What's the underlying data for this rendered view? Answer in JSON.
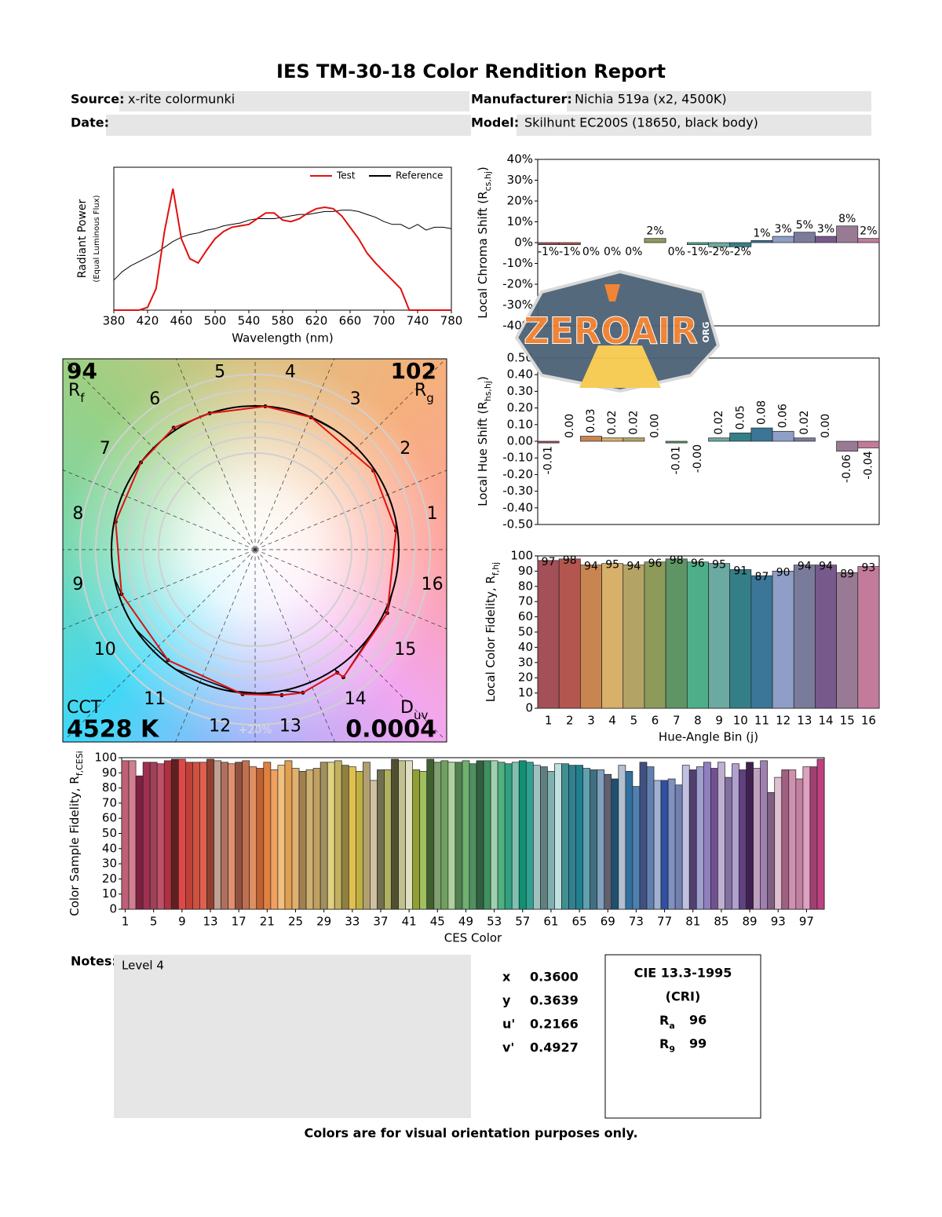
{
  "header": {
    "title": "IES TM-30-18 Color Rendition Report",
    "fields": [
      {
        "label": "Source:",
        "value": "x-rite colormunki"
      },
      {
        "label": "Manufacturer:",
        "value": "Nichia 519a (x2, 4500K)"
      },
      {
        "label": "Date:"
      },
      {
        "label": "Model:",
        "value": "Skilhunt EC200S (18650, black body)"
      }
    ]
  },
  "chart_data": [
    {
      "type": "line",
      "xlabel": "Wavelength (nm)",
      "ylabel": [
        "Radiant Power",
        "(Equal Luminous Flux)"
      ],
      "x": [
        380,
        390,
        400,
        410,
        420,
        430,
        440,
        450,
        460,
        470,
        480,
        490,
        500,
        510,
        520,
        530,
        540,
        550,
        560,
        570,
        580,
        590,
        600,
        610,
        620,
        630,
        640,
        650,
        660,
        670,
        680,
        690,
        700,
        710,
        720,
        730,
        740,
        750,
        760,
        770,
        780
      ],
      "xlim": [
        380,
        780
      ],
      "xticks": [
        380,
        420,
        460,
        500,
        540,
        580,
        620,
        660,
        700,
        740,
        780
      ],
      "ylim": [
        0,
        1
      ],
      "legend": "upper right",
      "series": [
        {
          "name": "Test",
          "color": "#e01010",
          "values": [
            0,
            0,
            0,
            0,
            0.02,
            0.15,
            0.55,
            0.85,
            0.5,
            0.36,
            0.33,
            0.42,
            0.5,
            0.55,
            0.58,
            0.59,
            0.6,
            0.64,
            0.68,
            0.68,
            0.63,
            0.62,
            0.64,
            0.68,
            0.71,
            0.72,
            0.71,
            0.66,
            0.58,
            0.5,
            0.4,
            0.33,
            0.27,
            0.21,
            0.15,
            0,
            0,
            0,
            0,
            0,
            0
          ]
        },
        {
          "name": "Reference",
          "color": "#000000",
          "values": [
            0.21,
            0.27,
            0.31,
            0.34,
            0.37,
            0.4,
            0.44,
            0.48,
            0.51,
            0.53,
            0.54,
            0.56,
            0.57,
            0.59,
            0.6,
            0.61,
            0.63,
            0.64,
            0.64,
            0.64,
            0.65,
            0.66,
            0.67,
            0.67,
            0.68,
            0.69,
            0.69,
            0.7,
            0.7,
            0.69,
            0.67,
            0.65,
            0.62,
            0.6,
            0.6,
            0.57,
            0.6,
            0.56,
            0.58,
            0.58,
            0.57
          ]
        }
      ]
    },
    {
      "type": "bar",
      "ylabel": {
        "text": "Local Chroma Shift (R",
        "sub": "cs,hj",
        "tail": ")"
      },
      "values": [
        -1,
        -1,
        0,
        0,
        0,
        2,
        0,
        -1,
        -2,
        -2,
        1,
        3,
        5,
        3,
        8,
        2
      ],
      "value_labels": [
        "-1%",
        "-1%",
        "0%",
        "0%",
        "0%",
        "2%",
        "0%",
        "-1%",
        "-2%",
        "-2%",
        "1%",
        "3%",
        "5%",
        "3%",
        "8%",
        "2%"
      ],
      "colors": [
        "#a35058",
        "#b3564f",
        "#c98550",
        "#d7b06a",
        "#b3a466",
        "#8c9b5a",
        "#5f9464",
        "#4fae8a",
        "#6aaaa0",
        "#347f87",
        "#3b7598",
        "#8f9ec6",
        "#7a7b9b",
        "#77598c",
        "#997a95",
        "#c27b9b"
      ],
      "ylim": [
        -40,
        40
      ],
      "yticks": [
        {
          "value": -40,
          "label": "-40%"
        },
        {
          "value": -30,
          "label": "-30%"
        },
        {
          "value": -20,
          "label": "-20%"
        },
        {
          "value": -10,
          "label": "-10%"
        },
        {
          "value": 0,
          "label": "0%"
        },
        {
          "value": 10,
          "label": "10%"
        },
        {
          "value": 20,
          "label": "20%"
        },
        {
          "value": 30,
          "label": "30%"
        },
        {
          "value": 40,
          "label": "40%"
        }
      ]
    },
    {
      "type": "bar",
      "ylabel": {
        "text": "Local Hue Shift (R",
        "sub": "hs,hj",
        "tail": ")"
      },
      "values": [
        -0.01,
        0,
        0.03,
        0.02,
        0.02,
        0,
        -0.01,
        0,
        0.02,
        0.05,
        0.08,
        0.06,
        0.02,
        0,
        -0.06,
        -0.04
      ],
      "value_labels": [
        "-0.01",
        "0.00",
        "0.03",
        "0.02",
        "0.02",
        "0.00",
        "-0.01",
        "-0.00",
        "0.02",
        "0.05",
        "0.08",
        "0.06",
        "0.02",
        "0.00",
        "-0.06",
        "-0.04"
      ],
      "label_rotation": -90,
      "colors": [
        "#a35058",
        "#b3564f",
        "#c98550",
        "#d7b06a",
        "#b3a466",
        "#8c9b5a",
        "#5f9464",
        "#4fae8a",
        "#6aaaa0",
        "#347f87",
        "#3b7598",
        "#8f9ec6",
        "#7a7b9b",
        "#77598c",
        "#997a95",
        "#c27b9b"
      ],
      "ylim": [
        -0.5,
        0.5
      ],
      "yticks": [
        {
          "value": -0.5,
          "label": "-0.50"
        },
        {
          "value": -0.4,
          "label": "-0.40"
        },
        {
          "value": -0.3,
          "label": "-0.30"
        },
        {
          "value": -0.2,
          "label": "-0.20"
        },
        {
          "value": -0.1,
          "label": "-0.10"
        },
        {
          "value": 0,
          "label": "0.00"
        },
        {
          "value": 0.1,
          "label": "0.10"
        },
        {
          "value": 0.2,
          "label": "0.20"
        },
        {
          "value": 0.3,
          "label": "0.30"
        },
        {
          "value": 0.4,
          "label": "0.40"
        },
        {
          "value": 0.5,
          "label": "0.50"
        }
      ]
    },
    {
      "type": "bar",
      "xlabel": "Hue-Angle Bin (j)",
      "ylabel": {
        "text": "Local Color Fidelity, R",
        "sub": "f,hj"
      },
      "categories": [
        1,
        2,
        3,
        4,
        5,
        6,
        7,
        8,
        9,
        10,
        11,
        12,
        13,
        14,
        15,
        16
      ],
      "values": [
        97,
        98,
        94,
        95,
        94,
        96,
        98,
        96,
        95,
        91,
        87,
        90,
        94,
        94,
        89,
        93
      ],
      "data_labels": true,
      "colors": [
        "#a35058",
        "#b3564f",
        "#c98550",
        "#d7b06a",
        "#b3a466",
        "#8c9b5a",
        "#5f9464",
        "#4fae8a",
        "#6aaaa0",
        "#347f87",
        "#3b7598",
        "#8f9ec6",
        "#7a7b9b",
        "#77598c",
        "#997a95",
        "#c27b9b"
      ],
      "ylim": [
        0,
        100
      ],
      "yticks": [
        0,
        10,
        20,
        30,
        40,
        50,
        60,
        70,
        80,
        90,
        100
      ]
    },
    {
      "type": "bar",
      "xlabel": "CES Color",
      "ylabel": {
        "text": "Color Sample Fidelity, R",
        "sub": "f,CESi"
      },
      "x": [
        1,
        2,
        3,
        4,
        5,
        6,
        7,
        8,
        9,
        10,
        11,
        12,
        13,
        14,
        15,
        16,
        17,
        18,
        19,
        20,
        21,
        22,
        23,
        24,
        25,
        26,
        27,
        28,
        29,
        30,
        31,
        32,
        33,
        34,
        35,
        36,
        37,
        38,
        39,
        40,
        41,
        42,
        43,
        44,
        45,
        46,
        47,
        48,
        49,
        50,
        51,
        52,
        53,
        54,
        55,
        56,
        57,
        58,
        59,
        60,
        61,
        62,
        63,
        64,
        65,
        66,
        67,
        68,
        69,
        70,
        71,
        72,
        73,
        74,
        75,
        76,
        77,
        78,
        79,
        80,
        81,
        82,
        83,
        84,
        85,
        86,
        87,
        88,
        89,
        90,
        91,
        92,
        93,
        94,
        95,
        96,
        97,
        98,
        99
      ],
      "values": [
        98,
        98,
        88,
        97,
        97,
        96,
        98,
        99,
        99,
        97,
        97,
        97,
        99,
        98,
        97,
        96,
        97,
        98,
        94,
        93,
        97,
        92,
        95,
        98,
        93,
        91,
        92,
        93,
        97,
        97,
        98,
        95,
        94,
        91,
        97,
        85,
        92,
        92,
        99,
        98,
        98,
        92,
        91,
        99,
        97,
        98,
        97,
        97,
        98,
        96,
        98,
        98,
        98,
        97,
        96,
        97,
        98,
        97,
        95,
        94,
        91,
        96,
        96,
        95,
        95,
        93,
        92,
        92,
        89,
        86,
        95,
        91,
        81,
        97,
        94,
        85,
        85,
        86,
        82,
        95,
        92,
        94,
        97,
        93,
        97,
        87,
        96,
        92,
        97,
        93,
        98,
        77,
        87,
        92,
        92,
        86,
        94,
        94,
        99
      ],
      "colors": [
        "#c06078",
        "#d08090",
        "#802040",
        "#a03050",
        "#a04058",
        "#c05068",
        "#b03040",
        "#602020",
        "#e04848",
        "#c04038",
        "#d05040",
        "#e06050",
        "#904030",
        "#c0a090",
        "#b07060",
        "#e09070",
        "#905040",
        "#c07050",
        "#e09060",
        "#c06030",
        "#e08040",
        "#f0a060",
        "#f0c080",
        "#e0a050",
        "#e0b070",
        "#a08050",
        "#d0b070",
        "#c0a060",
        "#a09060",
        "#e0d080",
        "#c0b060",
        "#908040",
        "#e0c050",
        "#c0b040",
        "#b0a070",
        "#d0c0a0",
        "#707050",
        "#b0b060",
        "#505030",
        "#c0c090",
        "#e0e0c0",
        "#90a030",
        "#a0c060",
        "#406030",
        "#80a070",
        "#70a060",
        "#b0d0a0",
        "#508050",
        "#70b070",
        "#509060",
        "#306040",
        "#409060",
        "#a0d0b0",
        "#50b080",
        "#30a080",
        "#80c0b0",
        "#109070",
        "#30a090",
        "#a0c0c0",
        "#608080",
        "#80b0b0",
        "#c0e0e0",
        "#409090",
        "#308090",
        "#208090",
        "#60a0b0",
        "#407080",
        "#80a0c0",
        "#606070",
        "#205070",
        "#b0c0d0",
        "#3070a0",
        "#5080b0",
        "#405080",
        "#6080b0",
        "#a0b0d0",
        "#3050a0",
        "#8090c0",
        "#7080b0",
        "#c0c0e0",
        "#504070",
        "#a0a0d0",
        "#9080c0",
        "#705090",
        "#c0b0d0",
        "#8070a0",
        "#b0a0d0",
        "#604080",
        "#402050",
        "#c0a0c0",
        "#a080b0",
        "#806080",
        "#e0c0d0",
        "#a06080",
        "#d090b0",
        "#c080a0",
        "#e0a0c0",
        "#a04070",
        "#c04080"
      ],
      "xlim": [
        0.5,
        99.5
      ],
      "xticks": [
        1,
        5,
        9,
        13,
        17,
        21,
        25,
        29,
        33,
        37,
        41,
        45,
        49,
        53,
        57,
        61,
        65,
        69,
        73,
        77,
        81,
        85,
        89,
        93,
        97
      ],
      "ylim": [
        0,
        100
      ],
      "yticks": [
        0,
        10,
        20,
        30,
        40,
        50,
        60,
        70,
        80,
        90,
        100
      ]
    },
    {
      "type": "vector",
      "categories": [
        1,
        2,
        3,
        4,
        5,
        6,
        7,
        8,
        9,
        10,
        11,
        12,
        13,
        14,
        15,
        16
      ],
      "rf": {
        "value": 94,
        "label": "R",
        "sub": "f"
      },
      "rg": {
        "value": 102,
        "label": "R",
        "sub": "g"
      },
      "cct": {
        "label": "CCT",
        "value": "4528 K"
      },
      "duv": {
        "label": "D",
        "sub": "uv",
        "value": "0.0004"
      },
      "ring_label": "+20%",
      "test_color": "#e01010",
      "reference_color": "#000000"
    }
  ],
  "chromaticity": [
    {
      "label": "x",
      "value": "0.3600"
    },
    {
      "label": "y",
      "value": "0.3639"
    },
    {
      "label": "u'",
      "value": "0.2166"
    },
    {
      "label": "v'",
      "value": "0.4927"
    }
  ],
  "cri": {
    "title": "CIE 13.3-1995",
    "subtitle": "(CRI)",
    "items": [
      {
        "label": "R",
        "sub": "a",
        "value": "96"
      },
      {
        "label": "R",
        "sub": "9",
        "value": "99"
      }
    ]
  },
  "notes": {
    "label": "Notes:",
    "text": "Level 4"
  },
  "footer": "Colors are for visual orientation purposes only.",
  "watermark": {
    "text": "ZEROAIR",
    "suffix": "ORG"
  }
}
